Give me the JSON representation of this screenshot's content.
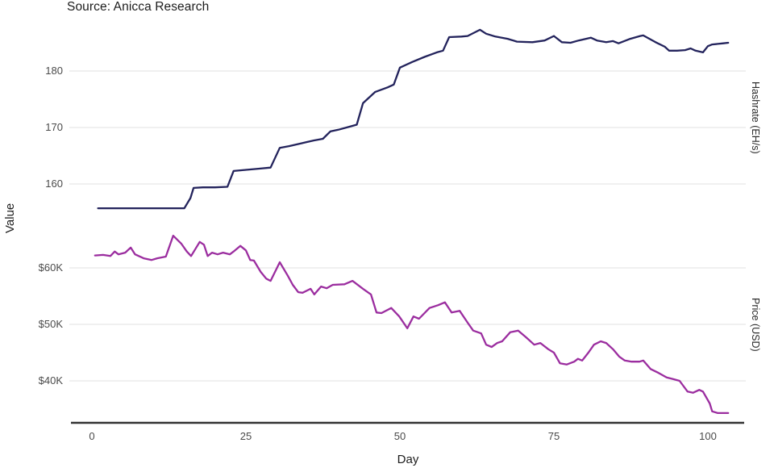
{
  "header": {
    "source": "Source: Anicca Research"
  },
  "chart_data": {
    "type": "line",
    "xlabel": "Day",
    "ylabel": "Value",
    "right_axis_labels": [
      "Hashrate (EH/s)",
      "Price (USD)"
    ],
    "grid": true,
    "legend": "none",
    "x_axis": {
      "ticks": [
        0,
        25,
        50,
        75,
        100
      ],
      "tick_labels": [
        "0",
        "25",
        "50",
        "75",
        "100"
      ],
      "domain": [
        0,
        100
      ],
      "pixel_range": [
        114,
        878
      ]
    },
    "hashrate_axis": {
      "tick_labels": [
        "180",
        "170",
        "160"
      ],
      "tick_values": [
        180,
        170,
        160
      ],
      "domain": [
        160,
        180
      ],
      "pixel_range": [
        228,
        88
      ]
    },
    "price_axis": {
      "tick_labels": [
        "$60K",
        "$50K",
        "$40K"
      ],
      "tick_values": [
        60,
        50,
        40
      ],
      "domain": [
        40,
        60
      ],
      "pixel_range": [
        472,
        332
      ]
    },
    "grid_x_extent": [
      86,
      925
    ],
    "baseline_y": 524,
    "baseline_x_extent": [
      88,
      923
    ],
    "colors": {
      "hashrate_line": "#23235c",
      "price_line": "#9b2d9f",
      "grid_line": "#e7e7e7",
      "axis_line": "#333333",
      "tick_text": "#4a4a4a"
    },
    "series": [
      {
        "name": "Hashrate (EH/s)",
        "axis": "hashrate_axis",
        "color": "#23235c",
        "points": [
          [
            1,
            155.7
          ],
          [
            3,
            155.7
          ],
          [
            5,
            155.7
          ],
          [
            7,
            155.7
          ],
          [
            9,
            155.7
          ],
          [
            11,
            155.7
          ],
          [
            13,
            155.7
          ],
          [
            15,
            155.7
          ],
          [
            16,
            157.5
          ],
          [
            16.5,
            159.3
          ],
          [
            18,
            159.4
          ],
          [
            20,
            159.4
          ],
          [
            22,
            159.5
          ],
          [
            23,
            162.3
          ],
          [
            25,
            162.5
          ],
          [
            27,
            162.7
          ],
          [
            29,
            162.9
          ],
          [
            30.5,
            166.4
          ],
          [
            32,
            166.7
          ],
          [
            34,
            167.2
          ],
          [
            36,
            167.7
          ],
          [
            37.5,
            168.0
          ],
          [
            38.7,
            169.3
          ],
          [
            40,
            169.6
          ],
          [
            42,
            170.2
          ],
          [
            43,
            170.5
          ],
          [
            44,
            174.3
          ],
          [
            46,
            176.3
          ],
          [
            48,
            177.1
          ],
          [
            49,
            177.6
          ],
          [
            50,
            180.6
          ],
          [
            52,
            181.6
          ],
          [
            54,
            182.5
          ],
          [
            56,
            183.3
          ],
          [
            57,
            183.6
          ],
          [
            58,
            186.0
          ],
          [
            60,
            186.1
          ],
          [
            61,
            186.2
          ],
          [
            63,
            187.3
          ],
          [
            64,
            186.6
          ],
          [
            65.5,
            186.1
          ],
          [
            67.5,
            185.7
          ],
          [
            69,
            185.2
          ],
          [
            71.5,
            185.1
          ],
          [
            73.5,
            185.4
          ],
          [
            75,
            186.2
          ],
          [
            76.3,
            185.1
          ],
          [
            77.7,
            185.0
          ],
          [
            79,
            185.4
          ],
          [
            81,
            185.9
          ],
          [
            82,
            185.4
          ],
          [
            83.5,
            185.1
          ],
          [
            84.6,
            185.3
          ],
          [
            85.5,
            184.9
          ],
          [
            87.4,
            185.7
          ],
          [
            89,
            186.2
          ],
          [
            89.5,
            186.3
          ],
          [
            91.5,
            185.1
          ],
          [
            93,
            184.3
          ],
          [
            93.7,
            183.6
          ],
          [
            95,
            183.6
          ],
          [
            96.3,
            183.7
          ],
          [
            97.2,
            184.0
          ],
          [
            98,
            183.6
          ],
          [
            99.2,
            183.3
          ],
          [
            100,
            184.4
          ],
          [
            100.7,
            184.7
          ],
          [
            102.5,
            184.9
          ],
          [
            103.3,
            185.0
          ]
        ]
      },
      {
        "name": "Price (USD)",
        "axis": "price_axis",
        "color": "#9b2d9f",
        "points": [
          [
            0.5,
            62.2
          ],
          [
            1.8,
            62.3
          ],
          [
            3,
            62.1
          ],
          [
            3.7,
            62.9
          ],
          [
            4.3,
            62.4
          ],
          [
            5.4,
            62.7
          ],
          [
            6.3,
            63.6
          ],
          [
            7,
            62.4
          ],
          [
            7.6,
            62.1
          ],
          [
            8.4,
            61.7
          ],
          [
            9.7,
            61.4
          ],
          [
            10.6,
            61.7
          ],
          [
            12,
            62.0
          ],
          [
            13.2,
            65.7
          ],
          [
            14.5,
            64.3
          ],
          [
            15.4,
            62.9
          ],
          [
            16.1,
            62.1
          ],
          [
            17.5,
            64.6
          ],
          [
            18.2,
            64.1
          ],
          [
            18.8,
            62.1
          ],
          [
            19.5,
            62.7
          ],
          [
            20.4,
            62.4
          ],
          [
            21.3,
            62.7
          ],
          [
            22.4,
            62.4
          ],
          [
            23,
            62.9
          ],
          [
            24.1,
            63.9
          ],
          [
            25,
            63.1
          ],
          [
            25.7,
            61.4
          ],
          [
            26.3,
            61.3
          ],
          [
            27.4,
            59.3
          ],
          [
            28.3,
            58.1
          ],
          [
            29,
            57.7
          ],
          [
            30.5,
            61.0
          ],
          [
            31.8,
            58.6
          ],
          [
            32.6,
            57.0
          ],
          [
            33.5,
            55.7
          ],
          [
            34.2,
            55.6
          ],
          [
            35.5,
            56.3
          ],
          [
            36.1,
            55.3
          ],
          [
            37.2,
            56.7
          ],
          [
            38.1,
            56.4
          ],
          [
            39.1,
            57.0
          ],
          [
            41,
            57.1
          ],
          [
            42.3,
            57.7
          ],
          [
            44,
            56.3
          ],
          [
            45.3,
            55.3
          ],
          [
            46.2,
            52.1
          ],
          [
            47,
            52.0
          ],
          [
            48.6,
            52.9
          ],
          [
            49.9,
            51.4
          ],
          [
            51.2,
            49.3
          ],
          [
            52.2,
            51.4
          ],
          [
            53.1,
            51.0
          ],
          [
            54.8,
            52.9
          ],
          [
            56.2,
            53.4
          ],
          [
            57.3,
            53.9
          ],
          [
            58.4,
            52.1
          ],
          [
            59.7,
            52.4
          ],
          [
            61,
            50.3
          ],
          [
            61.9,
            48.9
          ],
          [
            63.2,
            48.4
          ],
          [
            64,
            46.4
          ],
          [
            64.9,
            46.0
          ],
          [
            65.8,
            46.7
          ],
          [
            66.6,
            47.0
          ],
          [
            67.9,
            48.6
          ],
          [
            69.2,
            48.9
          ],
          [
            70.5,
            47.7
          ],
          [
            71.8,
            46.4
          ],
          [
            72.8,
            46.7
          ],
          [
            74.1,
            45.6
          ],
          [
            75,
            45.0
          ],
          [
            76,
            43.1
          ],
          [
            77.1,
            42.9
          ],
          [
            78.3,
            43.4
          ],
          [
            78.9,
            43.9
          ],
          [
            79.6,
            43.6
          ],
          [
            80.6,
            45.0
          ],
          [
            81.5,
            46.4
          ],
          [
            82.6,
            47.0
          ],
          [
            83.5,
            46.7
          ],
          [
            84.6,
            45.6
          ],
          [
            85.6,
            44.3
          ],
          [
            86.5,
            43.6
          ],
          [
            87.6,
            43.4
          ],
          [
            88.9,
            43.4
          ],
          [
            89.5,
            43.6
          ],
          [
            90.7,
            42.1
          ],
          [
            92,
            41.4
          ],
          [
            93.3,
            40.6
          ],
          [
            94.4,
            40.3
          ],
          [
            95.4,
            40.0
          ],
          [
            96.7,
            38.1
          ],
          [
            97.6,
            37.9
          ],
          [
            98.6,
            38.4
          ],
          [
            99.2,
            38.1
          ],
          [
            100.3,
            36.0
          ],
          [
            100.7,
            34.6
          ],
          [
            101.6,
            34.3
          ],
          [
            103.3,
            34.3
          ]
        ]
      }
    ]
  }
}
